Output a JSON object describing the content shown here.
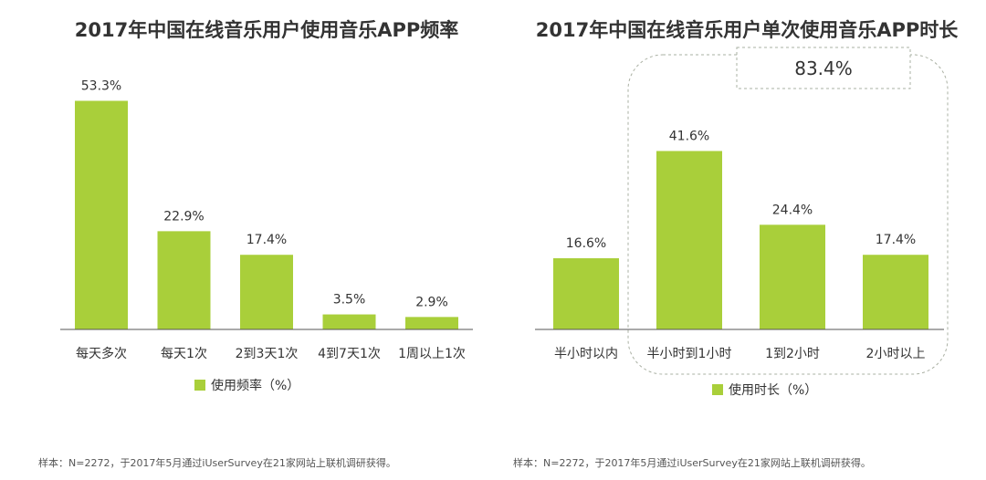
{
  "colors": {
    "bar": "#a9cf3a",
    "axis": "#555555",
    "dashed": "#aab0a3"
  },
  "chart_data": [
    {
      "type": "bar",
      "title": "2017年中国在线音乐用户使用音乐APP频率",
      "categories": [
        "每天多次",
        "每天1次",
        "2到3天1次",
        "4到7天1次",
        "1周以上1次"
      ],
      "values": [
        53.3,
        22.9,
        17.4,
        3.5,
        2.9
      ],
      "labels": [
        "53.3%",
        "22.9%",
        "17.4%",
        "3.5%",
        "2.9%"
      ],
      "legend": "使用频率（%）",
      "ylim": [
        0,
        60
      ]
    },
    {
      "type": "bar",
      "title": "2017年中国在线音乐用户单次使用音乐APP时长",
      "categories": [
        "半小时以内",
        "半小时到1小时",
        "1到2小时",
        "2小时以上"
      ],
      "values": [
        16.6,
        41.6,
        24.4,
        17.4
      ],
      "labels": [
        "16.6%",
        "41.6%",
        "24.4%",
        "17.4%"
      ],
      "legend": "使用时长（%）",
      "highlight": "83.4%",
      "ylim": [
        0,
        60
      ]
    }
  ],
  "footnotes": [
    "样本：N=2272，于2017年5月通过iUserSurvey在21家网站上联机调研获得。",
    "样本：N=2272，于2017年5月通过iUserSurvey在21家网站上联机调研获得。"
  ]
}
